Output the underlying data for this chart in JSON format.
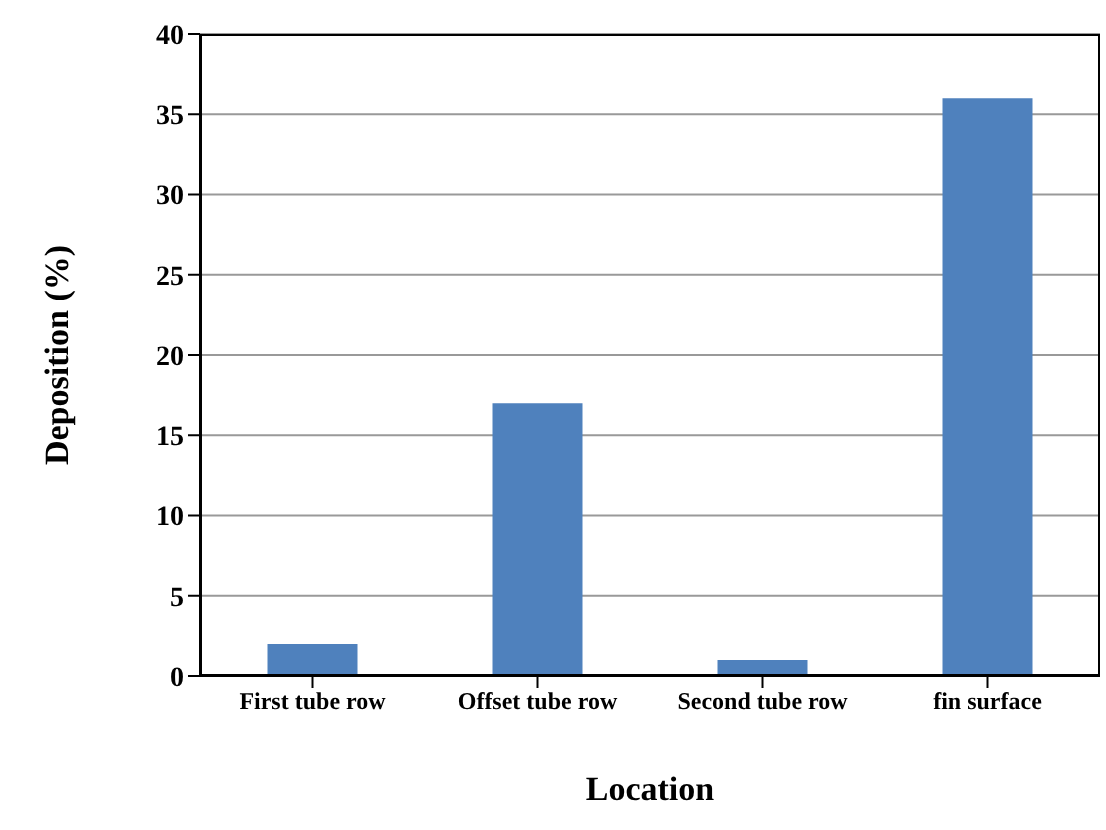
{
  "chart_data": {
    "type": "bar",
    "xlabel": "Location",
    "ylabel": "Deposition (%)",
    "categories": [
      "First tube row",
      "Offset tube row",
      "Second tube row",
      "fin surface"
    ],
    "values": [
      2,
      17,
      1,
      36
    ],
    "color": "#4f81bd",
    "ylim": [
      0,
      40
    ],
    "yticks": [
      0,
      5,
      10,
      15,
      20,
      25,
      30,
      35,
      40
    ],
    "grid": "y"
  }
}
